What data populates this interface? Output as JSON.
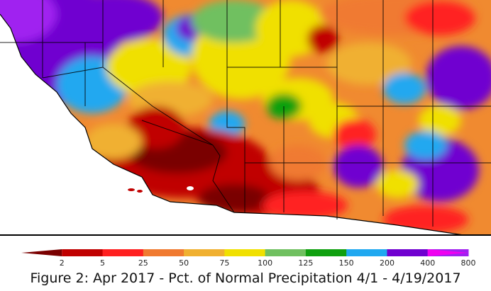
{
  "caption": "Figure 2: Apr 2017 - Pct. of Normal Precipitation 4/1 - 4/19/2017",
  "legend": {
    "labels": [
      "2",
      "5",
      "25",
      "50",
      "75",
      "100",
      "125",
      "150",
      "200",
      "400",
      "800"
    ],
    "colors": [
      "#7a0000",
      "#c00000",
      "#ff2020",
      "#f07a30",
      "#f0b030",
      "#f0e000",
      "#70c060",
      "#10a010",
      "#20a8f0",
      "#7000d0",
      "#a020f0",
      "#f000f0"
    ]
  },
  "map": {
    "ocean_color": "#ffffff",
    "boundary_color": "#000000"
  }
}
